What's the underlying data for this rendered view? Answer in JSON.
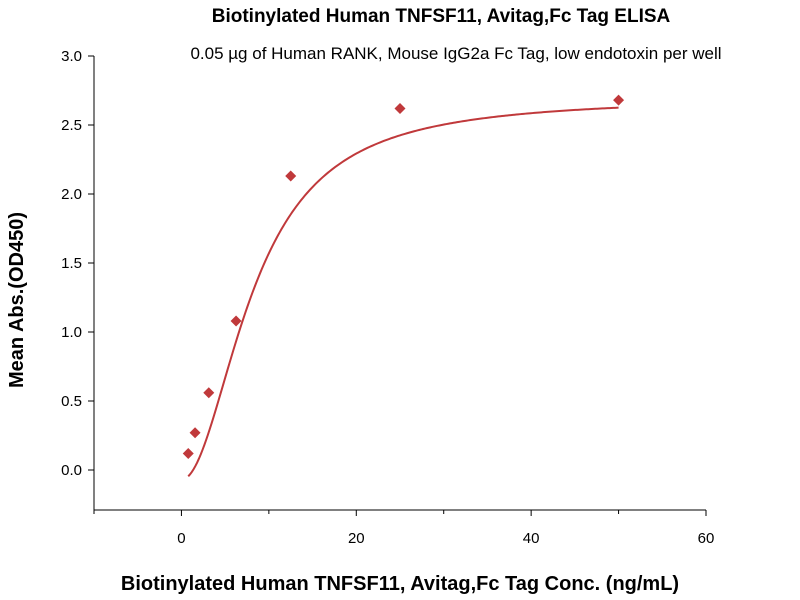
{
  "chart_data": {
    "type": "scatter",
    "title": "Biotinylated Human TNFSF11, Avitag,Fc Tag ELISA",
    "subtitle": "0.05 µg of Human RANK, Mouse IgG2a Fc Tag, low endotoxin per well",
    "xlabel": "Biotinylated Human TNFSF11, Avitag,Fc Tag Conc. (ng/mL)",
    "ylabel": "Mean Abs.(OD450)",
    "xlim": [
      -10,
      60
    ],
    "ylim": [
      0,
      3.0
    ],
    "xticks": [
      0,
      20,
      40,
      60
    ],
    "yticks": [
      0.0,
      0.5,
      1.0,
      1.5,
      2.0,
      2.5,
      3.0
    ],
    "xtick_labels": [
      "0",
      "20",
      "40",
      "60"
    ],
    "ytick_labels": [
      "0.0",
      "0.5",
      "1.0",
      "1.5",
      "2.0",
      "2.5",
      "3.0"
    ],
    "grid": false,
    "series": [
      {
        "x": [
          0.78,
          1.56,
          3.13,
          6.25,
          12.5,
          25,
          50
        ],
        "y": [
          0.12,
          0.27,
          0.56,
          1.08,
          2.13,
          2.62,
          2.68
        ],
        "marker": "diamond",
        "fit": "four-parameter logistic curve",
        "color": "#c0393b"
      }
    ]
  }
}
